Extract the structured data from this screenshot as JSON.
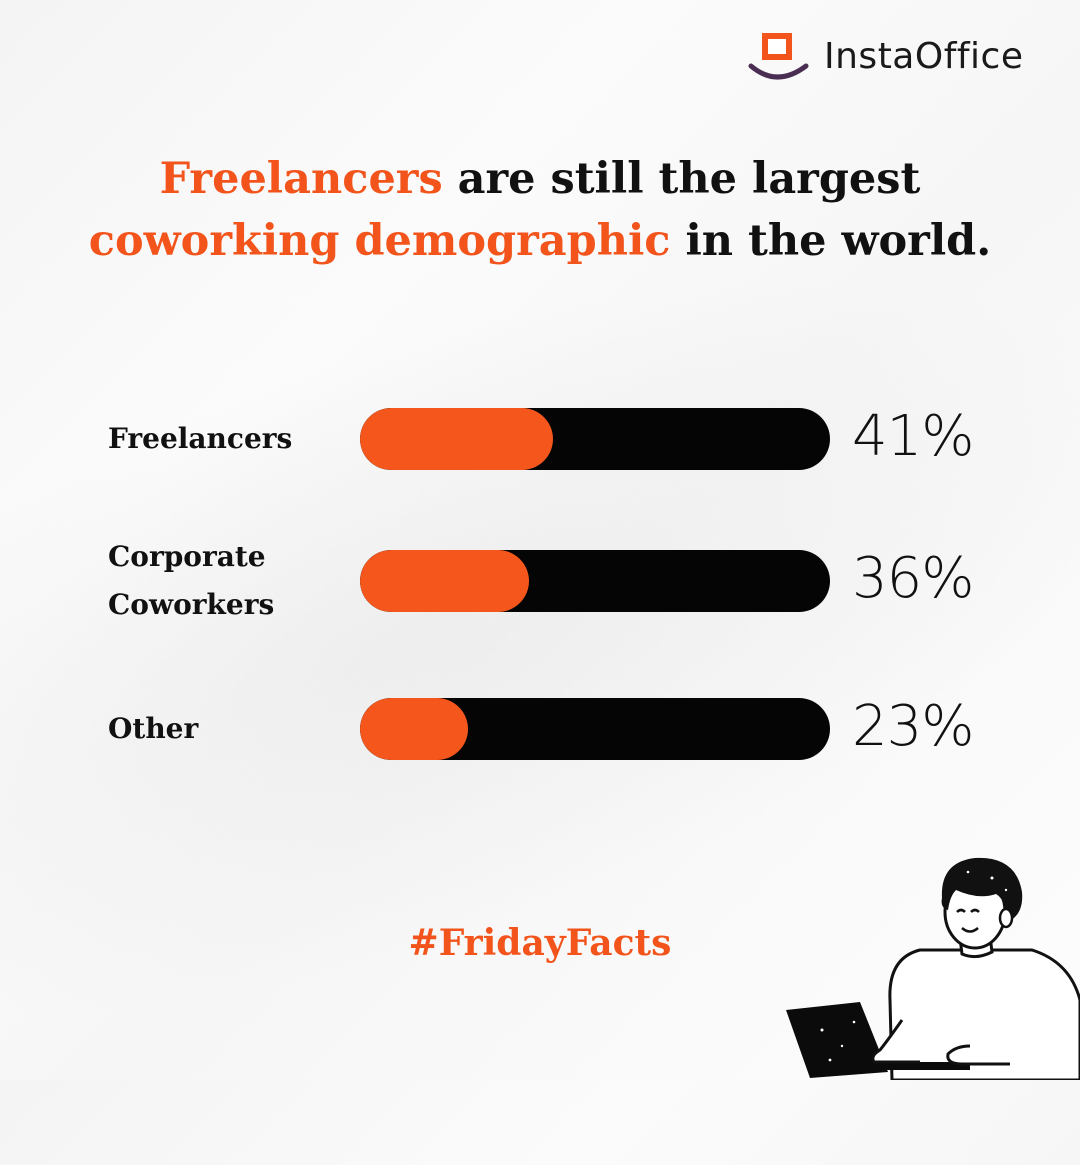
{
  "brand": {
    "name": "InstaOffice",
    "logo_icon": "office-box-smile-logo",
    "accent_color": "#f2541b",
    "logo_smile_color": "#4a2d52"
  },
  "headline": {
    "part1": "Freelancers",
    "part2": " are still the largest",
    "part3": "coworking demographic",
    "part4": " in the world."
  },
  "chart_data": {
    "type": "bar",
    "orientation": "horizontal",
    "categories": [
      "Freelancers",
      "Corporate Coworkers",
      "Other"
    ],
    "category_lines": [
      [
        "Freelancers"
      ],
      [
        "Corporate",
        "Coworkers"
      ],
      [
        "Other"
      ]
    ],
    "values": [
      41,
      36,
      23
    ],
    "value_labels": [
      "41%",
      "36%",
      "23%"
    ],
    "xlim": [
      0,
      100
    ],
    "unit": "%",
    "bar_color": "#f4561c",
    "track_color": "#050505",
    "grid": false
  },
  "hashtag": "#FridayFacts",
  "illustration": "person-with-laptop-illustration"
}
